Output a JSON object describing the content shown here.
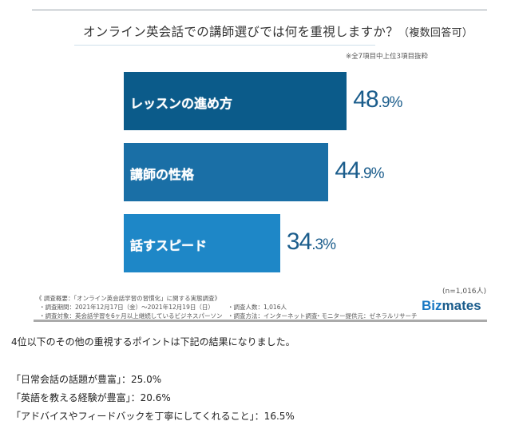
{
  "chart_data": {
    "type": "bar",
    "orientation": "horizontal",
    "title": "オンライン英会話での講師選びでは何を重視しますか？",
    "title_suffix": "（複数回答可）",
    "note": "※全7項目中上位3項目抜粋",
    "categories": [
      "レッスンの進め方",
      "講師の性格",
      "話すスピード"
    ],
    "values": [
      48.9,
      44.9,
      34.3
    ],
    "value_labels": [
      {
        "int": "48",
        "dec": ".9%"
      },
      {
        "int": "44",
        "dec": ".9%"
      },
      {
        "int": "34",
        "dec": ".3%"
      }
    ],
    "unit": "%",
    "colors": [
      "#0b5b8a",
      "#1a6fa6",
      "#1e87c7"
    ],
    "xlim": [
      0,
      100
    ],
    "grid": false
  },
  "footer": {
    "sample_size": "(n=1,016人)",
    "summary_title": "《 調査概要：「オンライン英会話学習の習慣化」に関する実態調査》",
    "period": "・調査期間：2021年12月17日（金）〜2021年12月19日（日）",
    "respondents": "・調査人数：1,016人",
    "target": "・調査対象：英会話学習を6ヶ月以上継続しているビジネスパーソン",
    "method": "・調査方法：インターネット調査",
    "provider": "・モニター提供元：ゼネラルリサーチ",
    "logo_a": "Biz",
    "logo_b": "mates"
  },
  "article": {
    "intro": "4位以下のその他の重視するポイントは下記の結果になりました。",
    "items": [
      "「日常会話の話題が豊富」：25.0%",
      "「英語を教える経験が豊富」：20.6%",
      "「アドバイスやフィードバックを丁寧にしてくれること」：16.5%"
    ]
  }
}
